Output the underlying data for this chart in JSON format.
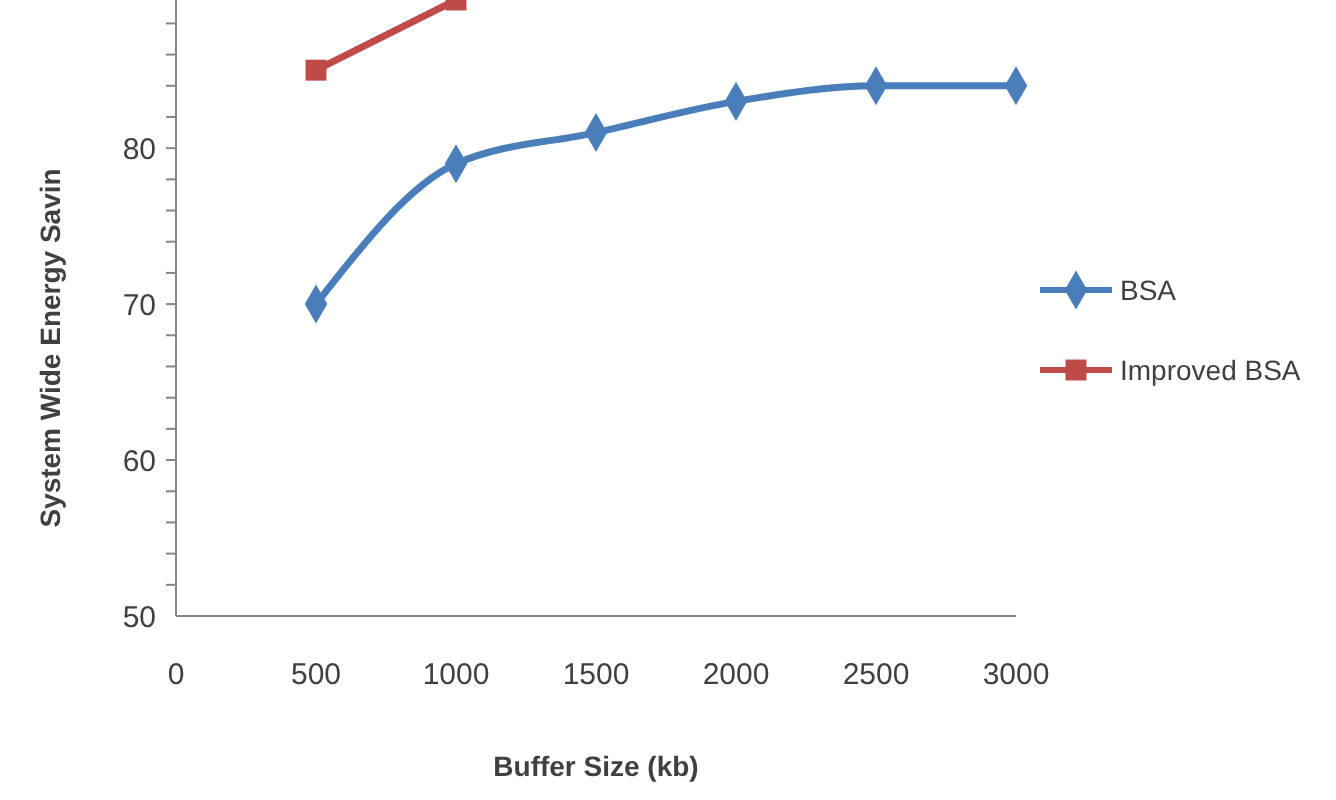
{
  "chart_data": {
    "type": "line",
    "xlabel": "Buffer Size (kb)",
    "ylabel": "System Wide Energy Savin",
    "x": [
      500,
      1000,
      1500,
      2000,
      2500,
      3000
    ],
    "series": [
      {
        "name": "BSA",
        "color": "#4a7ebb",
        "marker": "diamond",
        "values": [
          70,
          79,
          81,
          83,
          84,
          84
        ]
      },
      {
        "name": "Improved BSA",
        "color": "#be4b48",
        "marker": "square",
        "values": [
          85,
          89.5,
          null,
          null,
          null,
          null
        ]
      }
    ],
    "xlim": [
      0,
      3000
    ],
    "xticks": [
      0,
      500,
      1000,
      1500,
      2000,
      2500,
      3000
    ],
    "ylim": [
      50,
      89.5
    ],
    "yticks": [
      50,
      {
        "value": 52,
        "label": null
      },
      {
        "value": 54,
        "label": null
      },
      {
        "value": 56,
        "label": null
      },
      {
        "value": 58,
        "label": null
      },
      60,
      {
        "value": 62,
        "label": null
      },
      {
        "value": 64,
        "label": null
      },
      {
        "value": 66,
        "label": null
      },
      {
        "value": 68,
        "label": null
      },
      70,
      {
        "value": 72,
        "label": null
      },
      {
        "value": 74,
        "label": null
      },
      {
        "value": 76,
        "label": null
      },
      {
        "value": 78,
        "label": null
      },
      80,
      {
        "value": 82,
        "label": null
      },
      {
        "value": 84,
        "label": null
      },
      {
        "value": 86,
        "label": null
      },
      {
        "value": 88,
        "label": null
      }
    ],
    "legend": "right",
    "grid": false,
    "line_style": "solid"
  }
}
